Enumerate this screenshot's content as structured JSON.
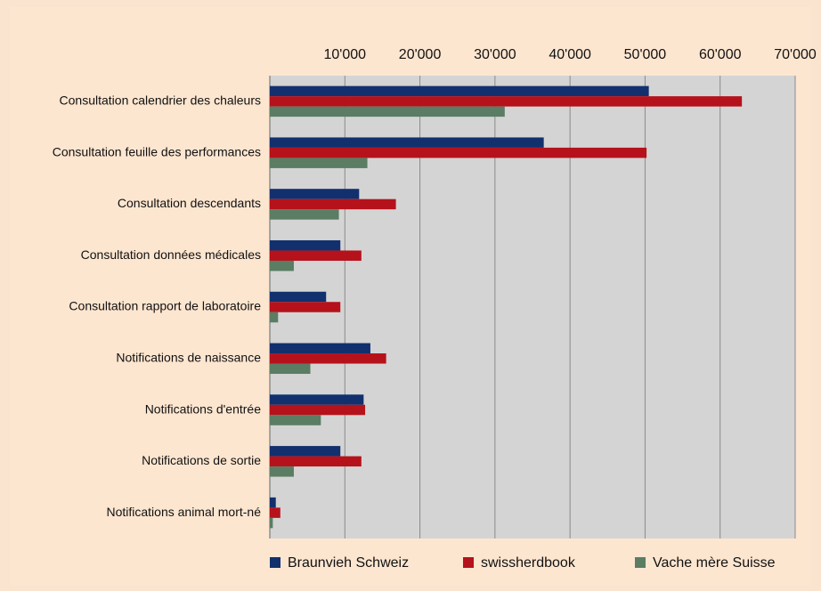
{
  "chart_data": {
    "type": "barh",
    "categories": [
      "Consultation calendrier des chaleurs",
      "Consultation feuille des performances",
      "Consultation descendants",
      "Consultation données médicales",
      "Consultation rapport de laboratoire",
      "Notifications de naissance",
      "Notifications d'entrée",
      "Notifications de sortie",
      "Notifications animal mort-né"
    ],
    "series": [
      {
        "name": "Braunvieh Schweiz",
        "color": "#12306e",
        "values": [
          50500,
          36500,
          11900,
          9400,
          7500,
          13400,
          12500,
          9400,
          800
        ]
      },
      {
        "name": "swissherdbook",
        "color": "#b5121b",
        "values": [
          62900,
          50200,
          16800,
          12200,
          9400,
          15500,
          12700,
          12200,
          1400
        ]
      },
      {
        "name": "Vache mère Suisse",
        "color": "#5a7d63",
        "values": [
          31300,
          13000,
          9200,
          3200,
          1100,
          5400,
          6800,
          3200,
          400
        ]
      }
    ],
    "xlim": [
      0,
      70000
    ],
    "xticks": [
      {
        "value": 10000,
        "label": "10'000"
      },
      {
        "value": 20000,
        "label": "20'000"
      },
      {
        "value": 30000,
        "label": "30'000"
      },
      {
        "value": 40000,
        "label": "40'000"
      },
      {
        "value": 50000,
        "label": "50'000"
      },
      {
        "value": 60000,
        "label": "60'000"
      },
      {
        "value": 70000,
        "label": "70'000"
      }
    ],
    "grid": true
  }
}
